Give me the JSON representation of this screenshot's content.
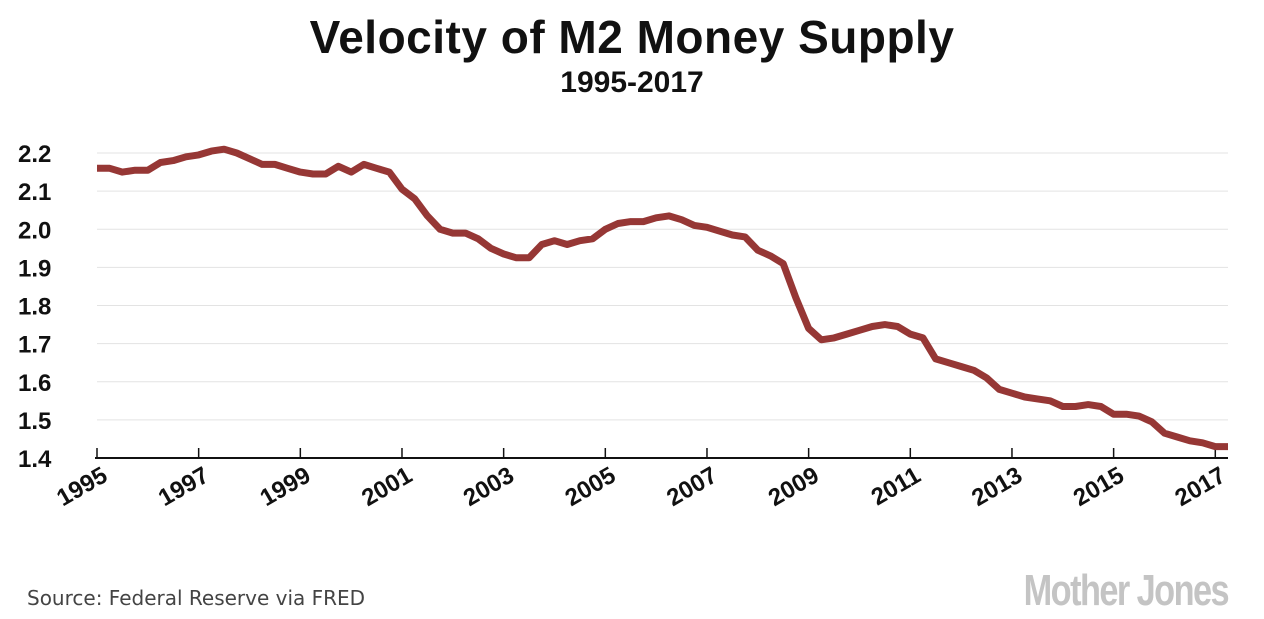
{
  "chart_data": {
    "type": "line",
    "title": "Velocity of M2 Money Supply",
    "subtitle": "1995-2017",
    "xlabel": "",
    "ylabel": "",
    "ylim": [
      1.4,
      2.2
    ],
    "xlim": [
      1995,
      2017.25
    ],
    "yticks": [
      "1.4",
      "1.5",
      "1.6",
      "1.7",
      "1.8",
      "1.9",
      "2.0",
      "2.1",
      "2.2"
    ],
    "xticks": [
      "1995",
      "1997",
      "1999",
      "2001",
      "2003",
      "2005",
      "2007",
      "2009",
      "2011",
      "2013",
      "2015",
      "2017"
    ],
    "grid": true,
    "legend": "none",
    "line_color": "#963735",
    "frequency": "quarterly",
    "x_start": 1995,
    "values": [
      2.16,
      2.16,
      2.15,
      2.155,
      2.155,
      2.175,
      2.18,
      2.19,
      2.195,
      2.205,
      2.21,
      2.2,
      2.185,
      2.17,
      2.17,
      2.16,
      2.15,
      2.145,
      2.145,
      2.165,
      2.15,
      2.17,
      2.16,
      2.15,
      2.105,
      2.08,
      2.035,
      2.0,
      1.99,
      1.99,
      1.975,
      1.95,
      1.935,
      1.925,
      1.925,
      1.96,
      1.97,
      1.96,
      1.97,
      1.975,
      2.0,
      2.015,
      2.02,
      2.02,
      2.03,
      2.035,
      2.025,
      2.01,
      2.005,
      1.995,
      1.985,
      1.98,
      1.945,
      1.93,
      1.91,
      1.82,
      1.74,
      1.71,
      1.715,
      1.725,
      1.735,
      1.745,
      1.75,
      1.745,
      1.725,
      1.715,
      1.66,
      1.65,
      1.64,
      1.63,
      1.61,
      1.58,
      1.57,
      1.56,
      1.555,
      1.55,
      1.535,
      1.535,
      1.54,
      1.535,
      1.515,
      1.515,
      1.51,
      1.495,
      1.465,
      1.455,
      1.445,
      1.44,
      1.43,
      1.43
    ]
  },
  "footer": {
    "source": "Source: Federal Reserve via FRED",
    "logo": "Mother Jones"
  }
}
